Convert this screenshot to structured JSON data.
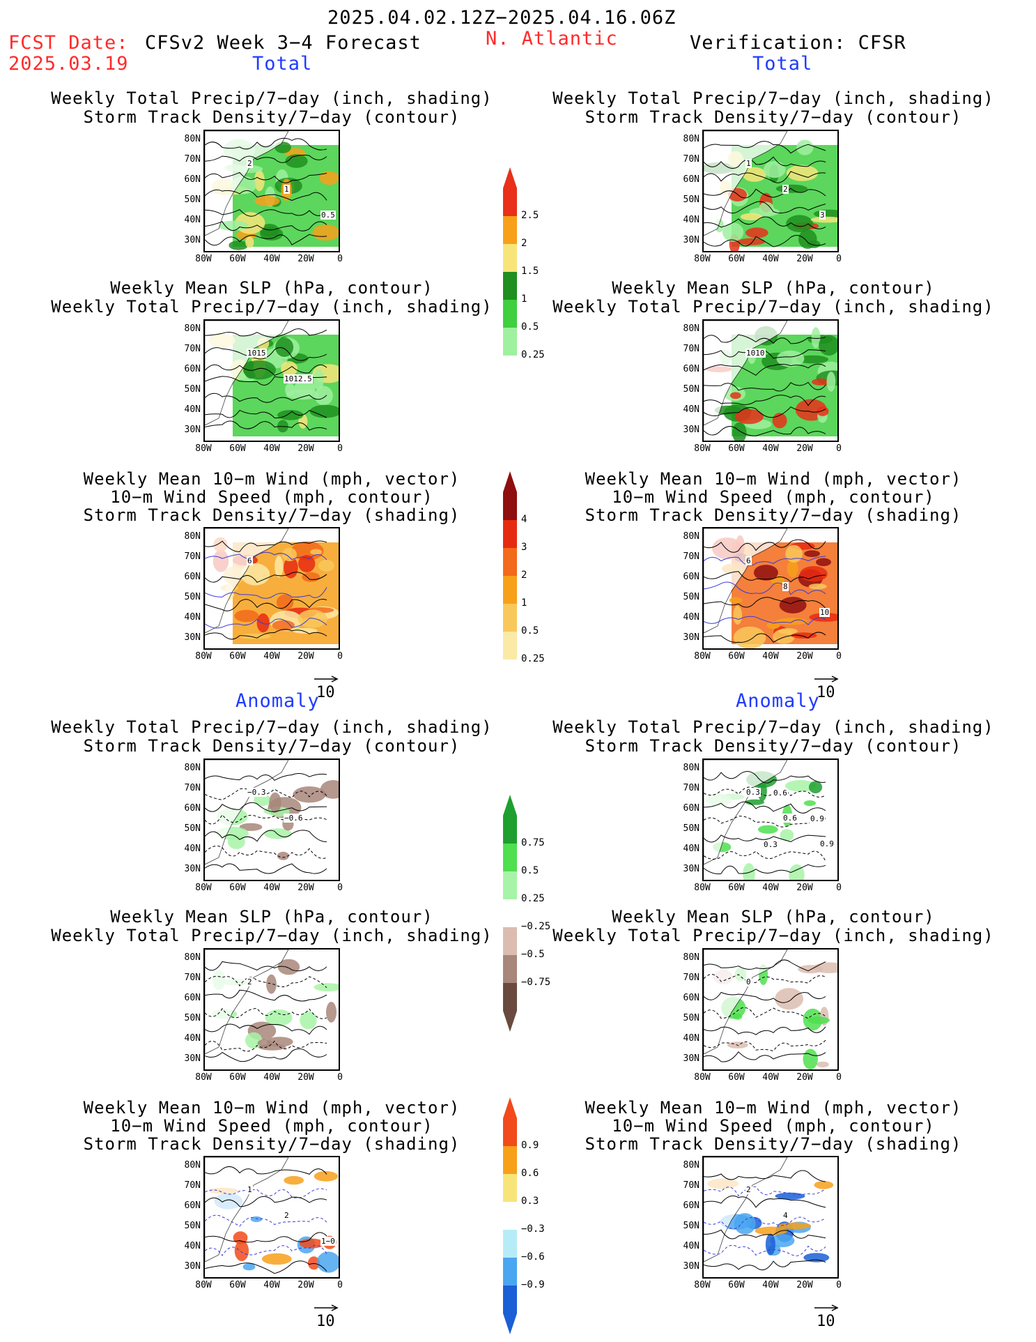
{
  "header": {
    "period": "2025.04.02.12Z−2025.04.16.06Z",
    "fcst_label": "FCST Date:",
    "fcst_date": "2025.03.19",
    "model": "CFSv2 Week 3−4 Forecast",
    "region": "N. Atlantic",
    "verification": "Verification: CFSR",
    "total_left": "Total",
    "total_right": "Total",
    "anomaly_left": "Anomaly",
    "anomaly_right": "Anomaly"
  },
  "titles": {
    "precip_track": [
      "Weekly Total Precip/7−day (inch, shading)",
      "Storm Track Density/7−day (contour)"
    ],
    "slp_precip": [
      "Weekly Mean SLP (hPa, contour)",
      "Weekly Total Precip/7−day (inch, shading)"
    ],
    "wind_track": [
      "Weekly Mean 10−m Wind (mph, vector)",
      "10−m Wind Speed (mph, contour)",
      "Storm Track Density/7−day (shading)"
    ]
  },
  "axes": {
    "lat_labels": [
      "80N",
      "70N",
      "60N",
      "50N",
      "40N",
      "30N"
    ],
    "lon_labels": [
      "80W",
      "60W",
      "40W",
      "20W",
      "0"
    ]
  },
  "vector_ref": "10",
  "colorbars": {
    "precip_total": {
      "labels": [
        "2.5",
        "2",
        "1.5",
        "1",
        "0.5",
        "0.25"
      ],
      "colors": [
        "#e8301a",
        "#f7a01a",
        "#f7e57a",
        "#1f8f1f",
        "#3fcf3f",
        "#9ff09f",
        "#ffffff"
      ]
    },
    "track_total": {
      "labels": [
        "4",
        "3",
        "2",
        "1",
        "0.5",
        "0.25"
      ],
      "colors": [
        "#8f0f0f",
        "#e62a12",
        "#f26a1a",
        "#f7a01a",
        "#f9c85a",
        "#fbe9a6",
        "#ffffff"
      ]
    },
    "precip_anom": {
      "labels": [
        "0.75",
        "0.5",
        "0.25",
        "−0.25",
        "−0.5",
        "−0.75"
      ],
      "colors": [
        "#1f9f2f",
        "#4fdf4f",
        "#a7f3a7",
        "#ffffff",
        "#dcbcb0",
        "#a8867a",
        "#6a4a3e"
      ]
    },
    "track_anom": {
      "labels": [
        "0.9",
        "0.6",
        "0.3",
        "−0.3",
        "−0.6",
        "−0.9"
      ],
      "colors": [
        "#f24a1a",
        "#f7a01a",
        "#f7e57a",
        "#ffffff",
        "#b5ecf7",
        "#4aa6f0",
        "#1a5fd6"
      ]
    }
  },
  "panels": [
    {
      "id": "fcst-total-precip-track",
      "labels": [
        "2",
        "1",
        "0.5"
      ]
    },
    {
      "id": "fcst-total-slp-precip",
      "labels": [
        "1015",
        "1012.5"
      ]
    },
    {
      "id": "fcst-total-wind-track",
      "labels": [
        "6"
      ]
    },
    {
      "id": "verif-total-precip-track",
      "labels": [
        "1",
        "2",
        "3"
      ]
    },
    {
      "id": "verif-total-slp-precip",
      "labels": [
        "1010"
      ]
    },
    {
      "id": "verif-total-wind-track",
      "labels": [
        "6",
        "8",
        "10"
      ]
    },
    {
      "id": "fcst-anom-precip-track",
      "labels": [
        "−0.3",
        "−0.6"
      ]
    },
    {
      "id": "fcst-anom-slp-precip",
      "labels": [
        "2"
      ]
    },
    {
      "id": "fcst-anom-wind-track",
      "labels": [
        "1",
        "2",
        "1−0"
      ]
    },
    {
      "id": "verif-anom-precip-track",
      "labels": [
        "0.3",
        "0.6",
        "0.9",
        "0.6",
        "0.9",
        "0.3"
      ]
    },
    {
      "id": "verif-anom-slp-precip",
      "labels": [
        "0"
      ]
    },
    {
      "id": "verif-anom-wind-track",
      "labels": [
        "2",
        "4"
      ]
    }
  ]
}
